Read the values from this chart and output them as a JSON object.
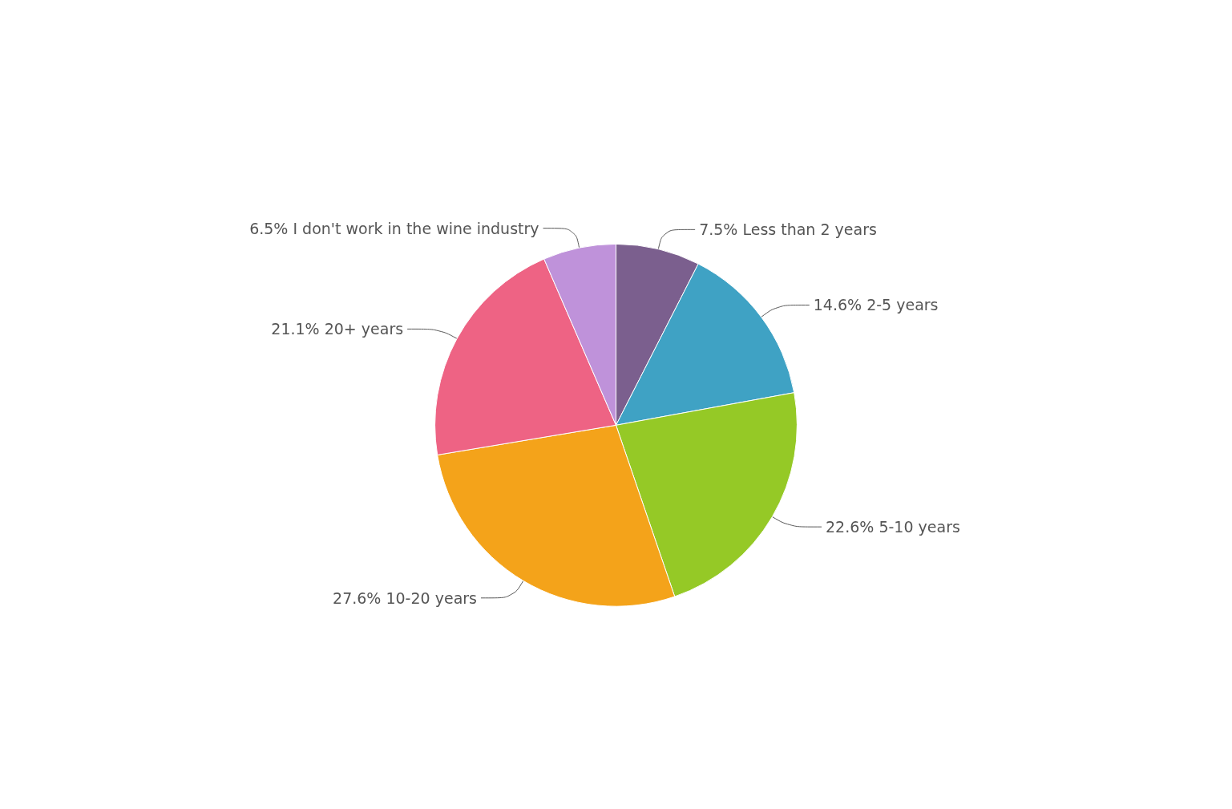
{
  "chart_data": {
    "type": "pie",
    "categories": [
      "Less than 2 years",
      "2-5 years",
      "5-10 years",
      "10-20 years",
      "20+ years",
      "I don't work in the wine industry"
    ],
    "values": [
      7.5,
      14.6,
      22.6,
      27.6,
      21.1,
      6.5
    ],
    "value_labels": [
      "7.5%",
      "14.6%",
      "22.6%",
      "27.6%",
      "21.1%",
      "6.5%"
    ],
    "colors": [
      "#7b5f8e",
      "#3fa2c4",
      "#95c926",
      "#f4a31a",
      "#ee6384",
      "#bf92da"
    ],
    "legend": false
  }
}
